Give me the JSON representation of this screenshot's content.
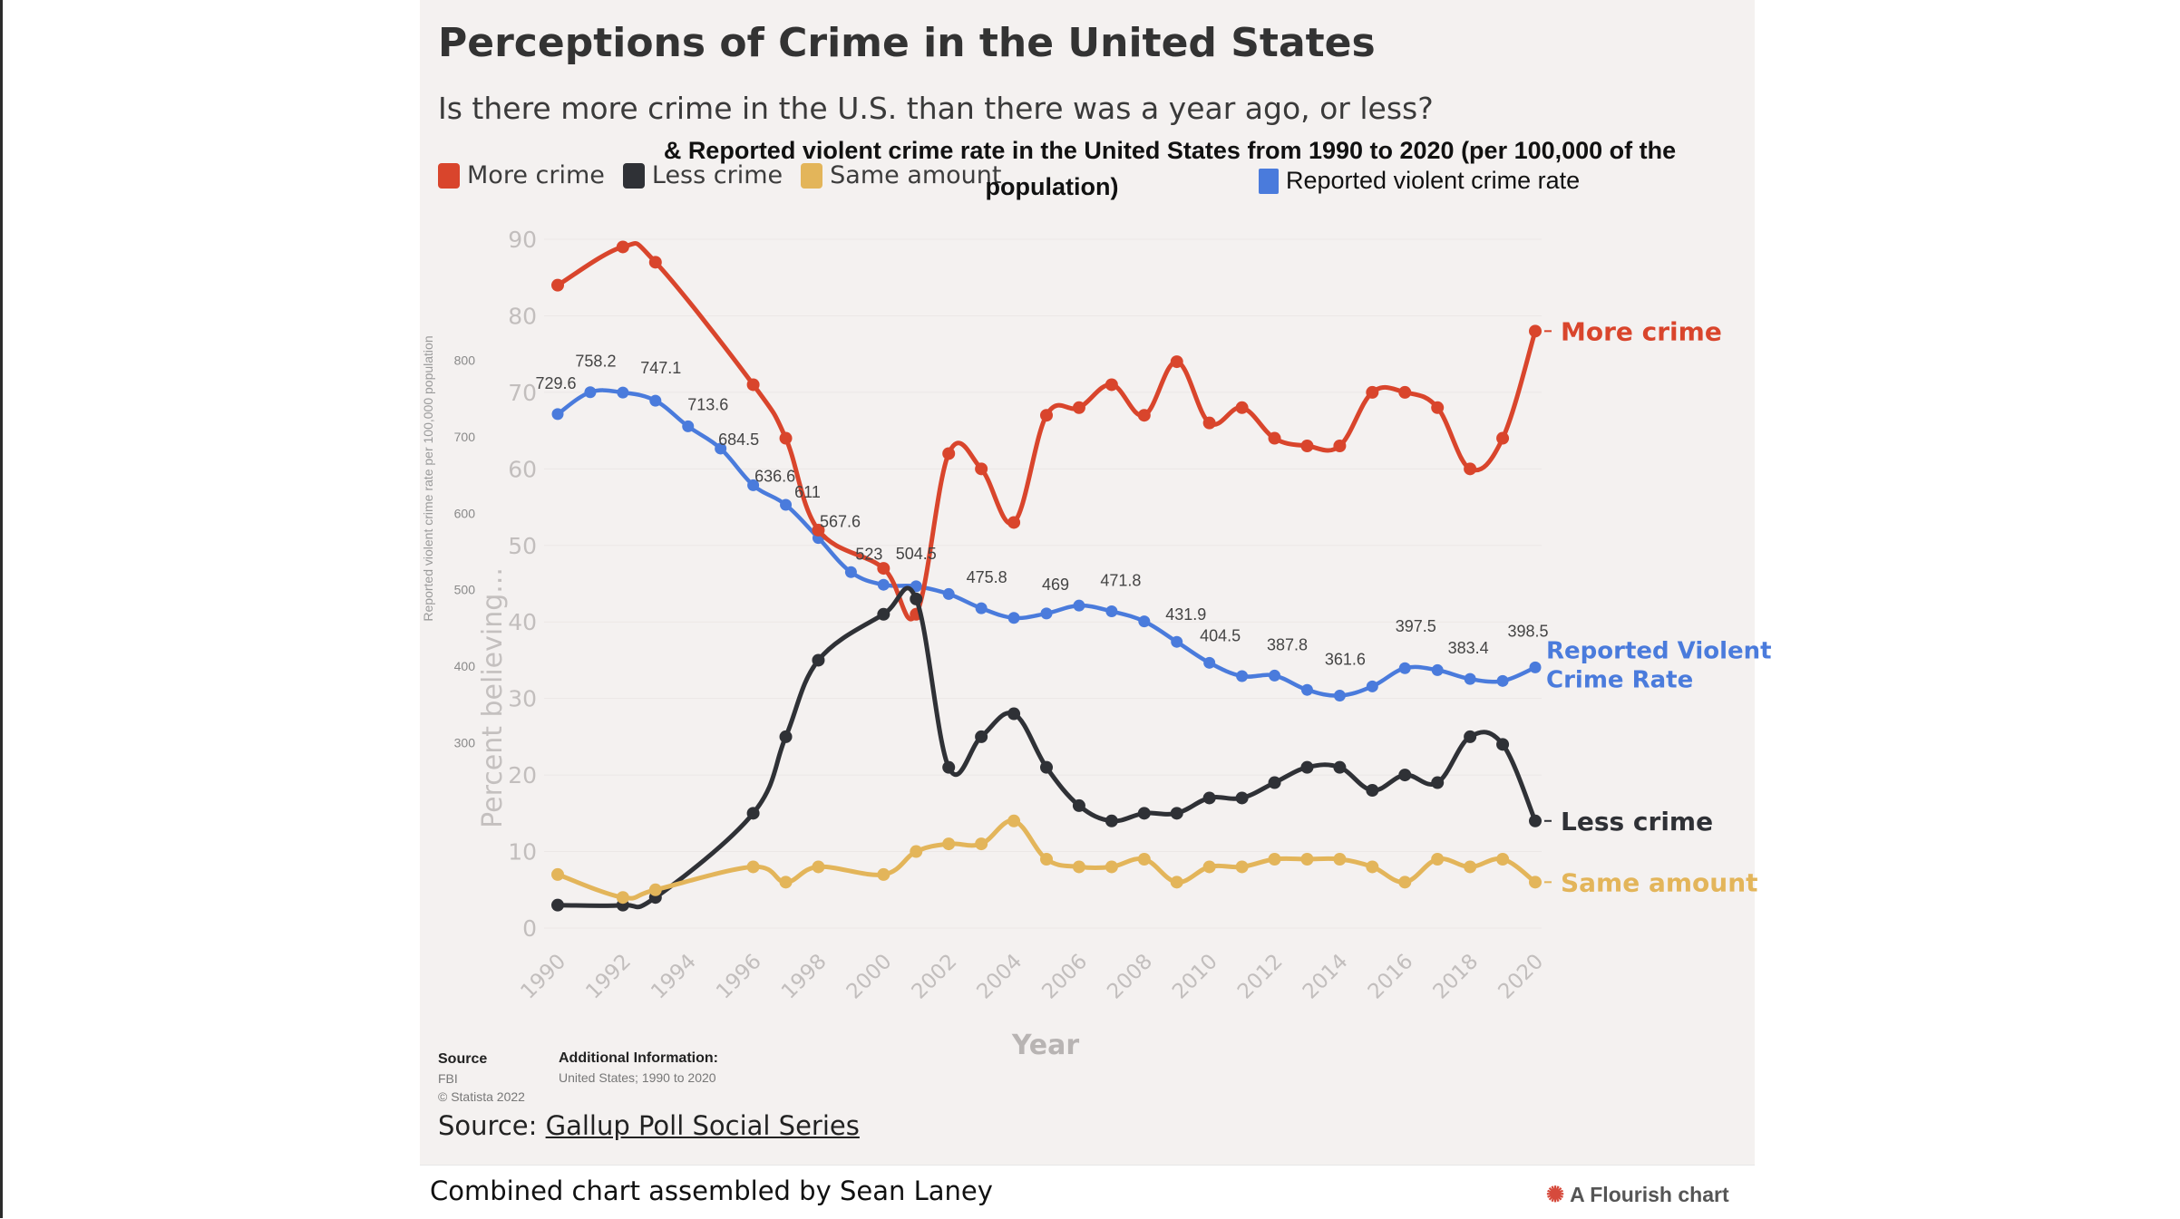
{
  "title": "Perceptions of Crime in the United States",
  "subtitle": "Is there more crime in the U.S. than there was a year ago, or less?",
  "legend": [
    {
      "label": "More crime",
      "color": "#d9452c"
    },
    {
      "label": "Less crime",
      "color": "#2f3136"
    },
    {
      "label": "Same amount",
      "color": "#e3b55a"
    }
  ],
  "statista": {
    "title_line1": "& Reported violent crime rate in the United States from 1990 to 2020 (per 100,000 of the",
    "title_line2": "population)",
    "legend_label": "Reported violent crime rate",
    "legend_color": "#4a7bdc",
    "y_label": "Reported violent crime rate per 100,000 population",
    "source_heading": "Source",
    "source_name": "FBI",
    "copyright": "© Statista 2022",
    "additional_heading": "Additional Information:",
    "additional_text": "United States; 1990 to 2020"
  },
  "source_prefix": "Source: ",
  "source_link": "Gallup Poll Social Series",
  "credit": "Combined chart assembled by Sean Laney",
  "flourish": "A Flourish chart",
  "chart_data": {
    "type": "line",
    "xlabel": "Year",
    "ylabel": "Percent believing...",
    "xlim": [
      1990,
      2020
    ],
    "ylim": [
      0,
      90
    ],
    "y_ticks": [
      0,
      10,
      20,
      30,
      40,
      50,
      60,
      70,
      80,
      90
    ],
    "x_ticks": [
      1990,
      1992,
      1994,
      1996,
      1998,
      2000,
      2002,
      2004,
      2006,
      2008,
      2010,
      2012,
      2014,
      2016,
      2018,
      2020
    ],
    "series": [
      {
        "name": "More crime",
        "color": "#d9452c",
        "points": [
          [
            1990,
            84
          ],
          [
            1992,
            89
          ],
          [
            1993,
            87
          ],
          [
            1996,
            71
          ],
          [
            1997,
            64
          ],
          [
            1998,
            52
          ],
          [
            2000,
            47
          ],
          [
            2001,
            41
          ],
          [
            2002,
            62
          ],
          [
            2003,
            60
          ],
          [
            2004,
            53
          ],
          [
            2005,
            67
          ],
          [
            2006,
            68
          ],
          [
            2007,
            71
          ],
          [
            2008,
            67
          ],
          [
            2009,
            74
          ],
          [
            2010,
            66
          ],
          [
            2011,
            68
          ],
          [
            2012,
            64
          ],
          [
            2013,
            63
          ],
          [
            2014,
            63
          ],
          [
            2015,
            70
          ],
          [
            2016,
            70
          ],
          [
            2017,
            68
          ],
          [
            2018,
            60
          ],
          [
            2019,
            64
          ],
          [
            2020,
            78
          ]
        ]
      },
      {
        "name": "Less crime",
        "color": "#2f3136",
        "points": [
          [
            1990,
            3
          ],
          [
            1992,
            3
          ],
          [
            1993,
            4
          ],
          [
            1996,
            15
          ],
          [
            1997,
            25
          ],
          [
            1998,
            35
          ],
          [
            2000,
            41
          ],
          [
            2001,
            43
          ],
          [
            2002,
            21
          ],
          [
            2003,
            25
          ],
          [
            2004,
            28
          ],
          [
            2005,
            21
          ],
          [
            2006,
            16
          ],
          [
            2007,
            14
          ],
          [
            2008,
            15
          ],
          [
            2009,
            15
          ],
          [
            2010,
            17
          ],
          [
            2011,
            17
          ],
          [
            2012,
            19
          ],
          [
            2013,
            21
          ],
          [
            2014,
            21
          ],
          [
            2015,
            18
          ],
          [
            2016,
            20
          ],
          [
            2017,
            19
          ],
          [
            2018,
            25
          ],
          [
            2019,
            24
          ],
          [
            2020,
            14
          ]
        ]
      },
      {
        "name": "Same amount",
        "color": "#e3b55a",
        "points": [
          [
            1990,
            7
          ],
          [
            1992,
            4
          ],
          [
            1993,
            5
          ],
          [
            1996,
            8
          ],
          [
            1997,
            6
          ],
          [
            1998,
            8
          ],
          [
            2000,
            7
          ],
          [
            2001,
            10
          ],
          [
            2002,
            11
          ],
          [
            2003,
            11
          ],
          [
            2004,
            14
          ],
          [
            2005,
            9
          ],
          [
            2006,
            8
          ],
          [
            2007,
            8
          ],
          [
            2008,
            9
          ],
          [
            2009,
            6
          ],
          [
            2010,
            8
          ],
          [
            2011,
            8
          ],
          [
            2012,
            9
          ],
          [
            2013,
            9
          ],
          [
            2014,
            9
          ],
          [
            2015,
            8
          ],
          [
            2016,
            6
          ],
          [
            2017,
            9
          ],
          [
            2018,
            8
          ],
          [
            2019,
            9
          ],
          [
            2020,
            6
          ]
        ]
      }
    ],
    "end_labels": [
      {
        "series": "More crime",
        "text": "More crime"
      },
      {
        "series": "Less crime",
        "text": "Less crime"
      },
      {
        "series": "Same amount",
        "text": "Same amount"
      }
    ],
    "secondary": {
      "name": "Reported violent crime rate",
      "end_label_line1": "Reported Violent",
      "end_label_line2": "Crime Rate",
      "color": "#4a7bdc",
      "ylim": [
        200,
        800
      ],
      "y_ticks": [
        300,
        400,
        500,
        600,
        700,
        800
      ],
      "years": [
        1990,
        1991,
        1992,
        1993,
        1994,
        1995,
        1996,
        1997,
        1998,
        1999,
        2000,
        2001,
        2002,
        2003,
        2004,
        2005,
        2006,
        2007,
        2008,
        2009,
        2010,
        2011,
        2012,
        2013,
        2014,
        2015,
        2016,
        2017,
        2018,
        2019,
        2020
      ],
      "values": [
        729.6,
        758.2,
        757.7,
        747.1,
        713.6,
        684.5,
        636.6,
        611,
        567.6,
        523,
        506.5,
        504.5,
        494.4,
        475.8,
        463.2,
        469,
        479.3,
        471.8,
        458.6,
        431.9,
        404.5,
        387.1,
        387.8,
        369.1,
        361.6,
        373.7,
        397.5,
        394.9,
        383.4,
        380.8,
        398.5
      ],
      "labeled": {
        "1990": "729.6",
        "1991": "758.2",
        "1993": "747.1",
        "1994": "713.6",
        "1995": "684.5",
        "1996": "636.6",
        "1997": "611",
        "1998": "567.6",
        "1999": "523",
        "2001": "504.5",
        "2003": "475.8",
        "2005": "469",
        "2007": "471.8",
        "2009": "431.9",
        "2010": "404.5",
        "2012": "387.8",
        "2014": "361.6",
        "2016": "397.5",
        "2018": "383.4",
        "2020": "398.5"
      }
    }
  }
}
